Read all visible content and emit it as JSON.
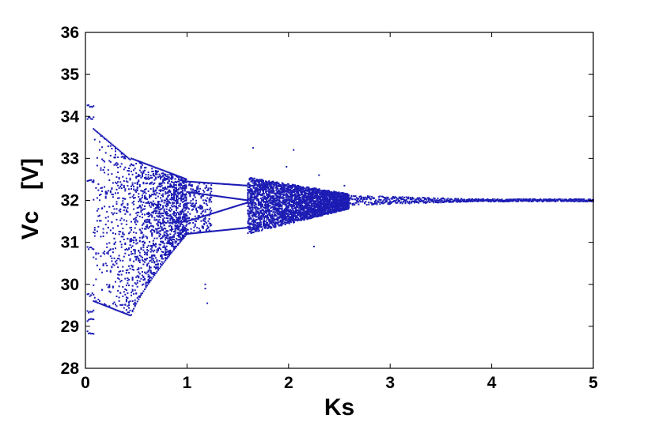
{
  "chart_data": {
    "type": "scatter",
    "title": "",
    "xlabel": "Ks",
    "ylabel_main": "Vc",
    "ylabel_unit": "[V]",
    "xlim": [
      0,
      5
    ],
    "ylim": [
      28,
      36
    ],
    "x_ticks": [
      0,
      1,
      2,
      3,
      4,
      5
    ],
    "x_tick_labels": [
      "0",
      "1",
      "2",
      "3",
      "4",
      "5"
    ],
    "y_ticks": [
      28,
      29,
      30,
      31,
      32,
      33,
      34,
      35,
      36
    ],
    "y_tick_labels": [
      "28",
      "29",
      "30",
      "31",
      "32",
      "33",
      "34",
      "35",
      "36"
    ],
    "grid": false,
    "legend": "none",
    "marker_color": "#1c1cb4",
    "series": [
      {
        "description_segments": [
          {
            "x_range": [
              0.02,
              0.08
            ],
            "y_values": [
              34.25,
              33.95,
              32.45,
              30.85,
              29.75,
              29.35,
              29.15,
              28.85
            ]
          },
          {
            "x_range": [
              0.08,
              0.45
            ],
            "y_upper_from": 33.7,
            "y_upper_to": 32.9,
            "y_lower_from": 29.6,
            "y_lower_to": 29.25
          },
          {
            "x_range": [
              0.45,
              1.0
            ],
            "y_upper_from": 33.0,
            "y_upper_to": 32.5,
            "y_lower_from": 29.25,
            "y_lower_to": 31.2
          },
          {
            "x_range": [
              1.0,
              1.6
            ],
            "branches": [
              32.4,
              31.3
            ],
            "merge": 31.95
          },
          {
            "x_range": [
              1.6,
              2.6
            ],
            "band_from": [
              30.9,
              32.8
            ],
            "band_to": [
              31.8,
              32.2
            ]
          },
          {
            "x_range": [
              2.6,
              5.0
            ],
            "center": 32.0,
            "band_from": 0.2,
            "band_to": 0.04
          }
        ],
        "outliers": [
          {
            "x": 1.18,
            "y": 30.0
          },
          {
            "x": 1.18,
            "y": 29.9
          },
          {
            "x": 1.2,
            "y": 29.55
          },
          {
            "x": 1.65,
            "y": 33.25
          },
          {
            "x": 2.05,
            "y": 33.2
          },
          {
            "x": 1.98,
            "y": 32.8
          },
          {
            "x": 2.3,
            "y": 32.6
          },
          {
            "x": 2.55,
            "y": 32.35
          },
          {
            "x": 2.25,
            "y": 30.9
          }
        ]
      }
    ]
  }
}
